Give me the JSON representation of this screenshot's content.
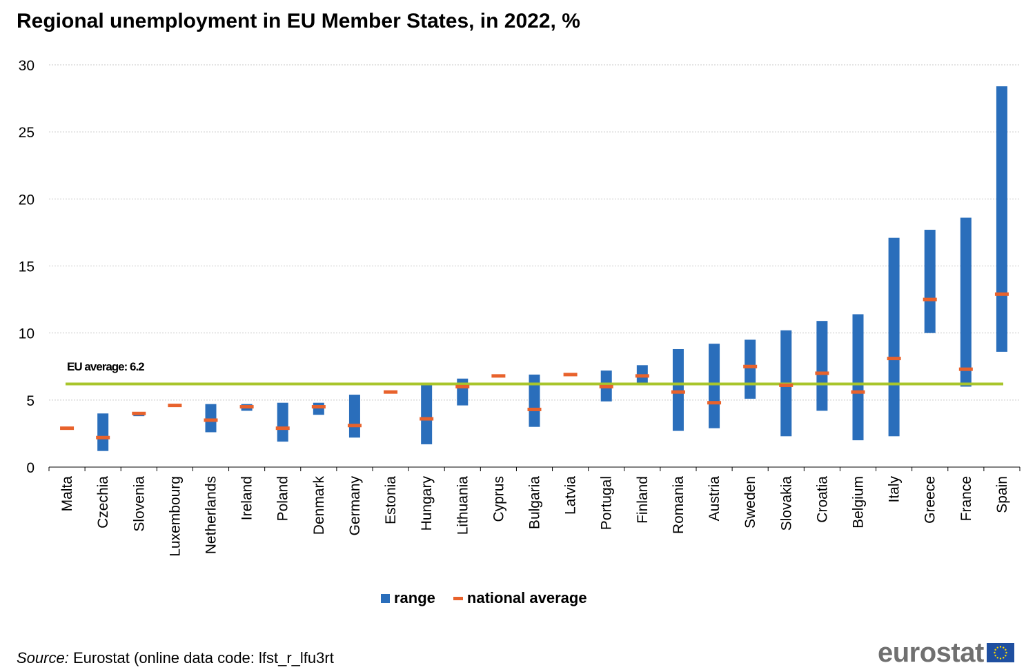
{
  "title": "Regional unemployment in EU Member States, in 2022, %",
  "source": {
    "label": "Source:",
    "text": "Eurostat (online data code: lfst_r_lfu3rt"
  },
  "brand": {
    "text": "eurostat",
    "icon": "eu-flag-icon"
  },
  "legend": {
    "items": [
      {
        "label": "range",
        "color": "#2a6ebb",
        "marker": "square"
      },
      {
        "label": "national average",
        "color": "#e8622c",
        "marker": "dash"
      }
    ]
  },
  "colors": {
    "range": "#2a6ebb",
    "average": "#e8622c",
    "eu_line": "#a8c52b",
    "grid": "#c8c8c8",
    "axis": "#000000"
  },
  "chart_data": {
    "type": "bar",
    "subtype": "floating range with markers",
    "title": "Regional unemployment in EU Member States, in 2022, %",
    "xlabel": "",
    "ylabel": "",
    "ylim": [
      0,
      30
    ],
    "yticks": [
      0,
      5,
      10,
      15,
      20,
      25,
      30
    ],
    "grid": true,
    "legend_position": "bottom",
    "categories": [
      "Malta",
      "Czechia",
      "Slovenia",
      "Luxembourg",
      "Netherlands",
      "Ireland",
      "Poland",
      "Denmark",
      "Germany",
      "Estonia",
      "Hungary",
      "Lithuania",
      "Cyprus",
      "Bulgaria",
      "Latvia",
      "Portugal",
      "Finland",
      "Romania",
      "Austria",
      "Sweden",
      "Slovakia",
      "Croatia",
      "Belgium",
      "Italy",
      "Greece",
      "France",
      "Spain"
    ],
    "series": [
      {
        "name": "range",
        "min": [
          2.9,
          1.2,
          3.8,
          4.6,
          2.6,
          4.2,
          1.9,
          3.9,
          2.2,
          5.6,
          1.7,
          4.6,
          6.8,
          3.0,
          6.9,
          4.9,
          6.2,
          2.7,
          2.9,
          5.1,
          2.3,
          4.2,
          2.0,
          2.3,
          10.0,
          6.0,
          8.6
        ],
        "max": [
          2.9,
          4.0,
          4.1,
          4.6,
          4.7,
          4.7,
          4.8,
          4.8,
          5.4,
          5.6,
          6.2,
          6.6,
          6.8,
          6.9,
          6.9,
          7.2,
          7.6,
          8.8,
          9.2,
          9.5,
          10.2,
          10.9,
          11.4,
          17.1,
          17.7,
          18.6,
          28.4
        ]
      },
      {
        "name": "national average",
        "values": [
          2.9,
          2.2,
          4.0,
          4.6,
          3.5,
          4.5,
          2.9,
          4.5,
          3.1,
          5.6,
          3.6,
          6.0,
          6.8,
          4.3,
          6.9,
          6.0,
          6.8,
          5.6,
          4.8,
          7.5,
          6.1,
          7.0,
          5.6,
          8.1,
          12.5,
          7.3,
          12.9
        ]
      }
    ],
    "reference_line": {
      "label": "EU average: 6.2",
      "value": 6.2
    }
  }
}
